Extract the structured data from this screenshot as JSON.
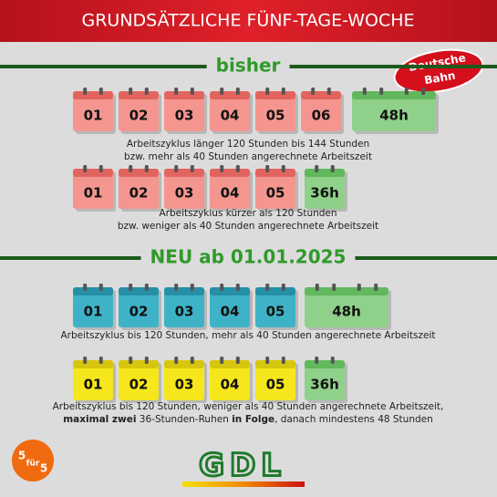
{
  "header": {
    "title": "GRUNDSÄTZLICHE FÜNF-TAGE-WOCHE"
  },
  "badge": {
    "lines": [
      "Deutsche",
      "Bahn"
    ]
  },
  "sections": [
    {
      "title": "bisher",
      "rows": [
        {
          "days": [
            "01",
            "02",
            "03",
            "04",
            "05",
            "06"
          ],
          "rest": "48h",
          "caption": [
            [
              {
                "text": "Arbeitszyklus länger 120 Stunden bis 144 Stunden"
              }
            ],
            [
              {
                "text": "bzw. mehr als 40 Stunden angerechnete Arbeitszeit"
              }
            ]
          ]
        },
        {
          "days": [
            "01",
            "02",
            "03",
            "04",
            "05"
          ],
          "rest": "36h",
          "caption": [
            [
              {
                "text": "Arbeitszyklus kürzer als 120 Stunden"
              }
            ],
            [
              {
                "text": "bzw. weniger als 40 Stunden angerechnete Arbeitszeit"
              }
            ]
          ]
        }
      ]
    },
    {
      "title": "NEU ab 01.01.2025",
      "rows": [
        {
          "days": [
            "01",
            "02",
            "03",
            "04",
            "05"
          ],
          "rest": "48h",
          "caption": [
            [
              {
                "text": "Arbeitszyklus bis 120 Stunden, mehr als 40 Stunden angerechnete Arbeitszeit"
              }
            ]
          ]
        },
        {
          "days": [
            "01",
            "02",
            "03",
            "04",
            "05"
          ],
          "rest": "36h",
          "caption": [
            [
              {
                "text": "Arbeitszyklus bis 120 Stunden, weniger als 40 Stunden angerechnete Arbeitszeit,"
              }
            ],
            [
              {
                "text": "maximal zwei",
                "bold": true
              },
              {
                "text": " 36-Stunden-Ruhen "
              },
              {
                "text": "in Folge",
                "bold": true
              },
              {
                "text": ", danach mindestens 48 Stunden"
              }
            ]
          ]
        }
      ]
    }
  ],
  "logo": {
    "text": "GDL"
  },
  "five_for_five": {
    "left": "5",
    "middle": "für",
    "right": "5"
  }
}
